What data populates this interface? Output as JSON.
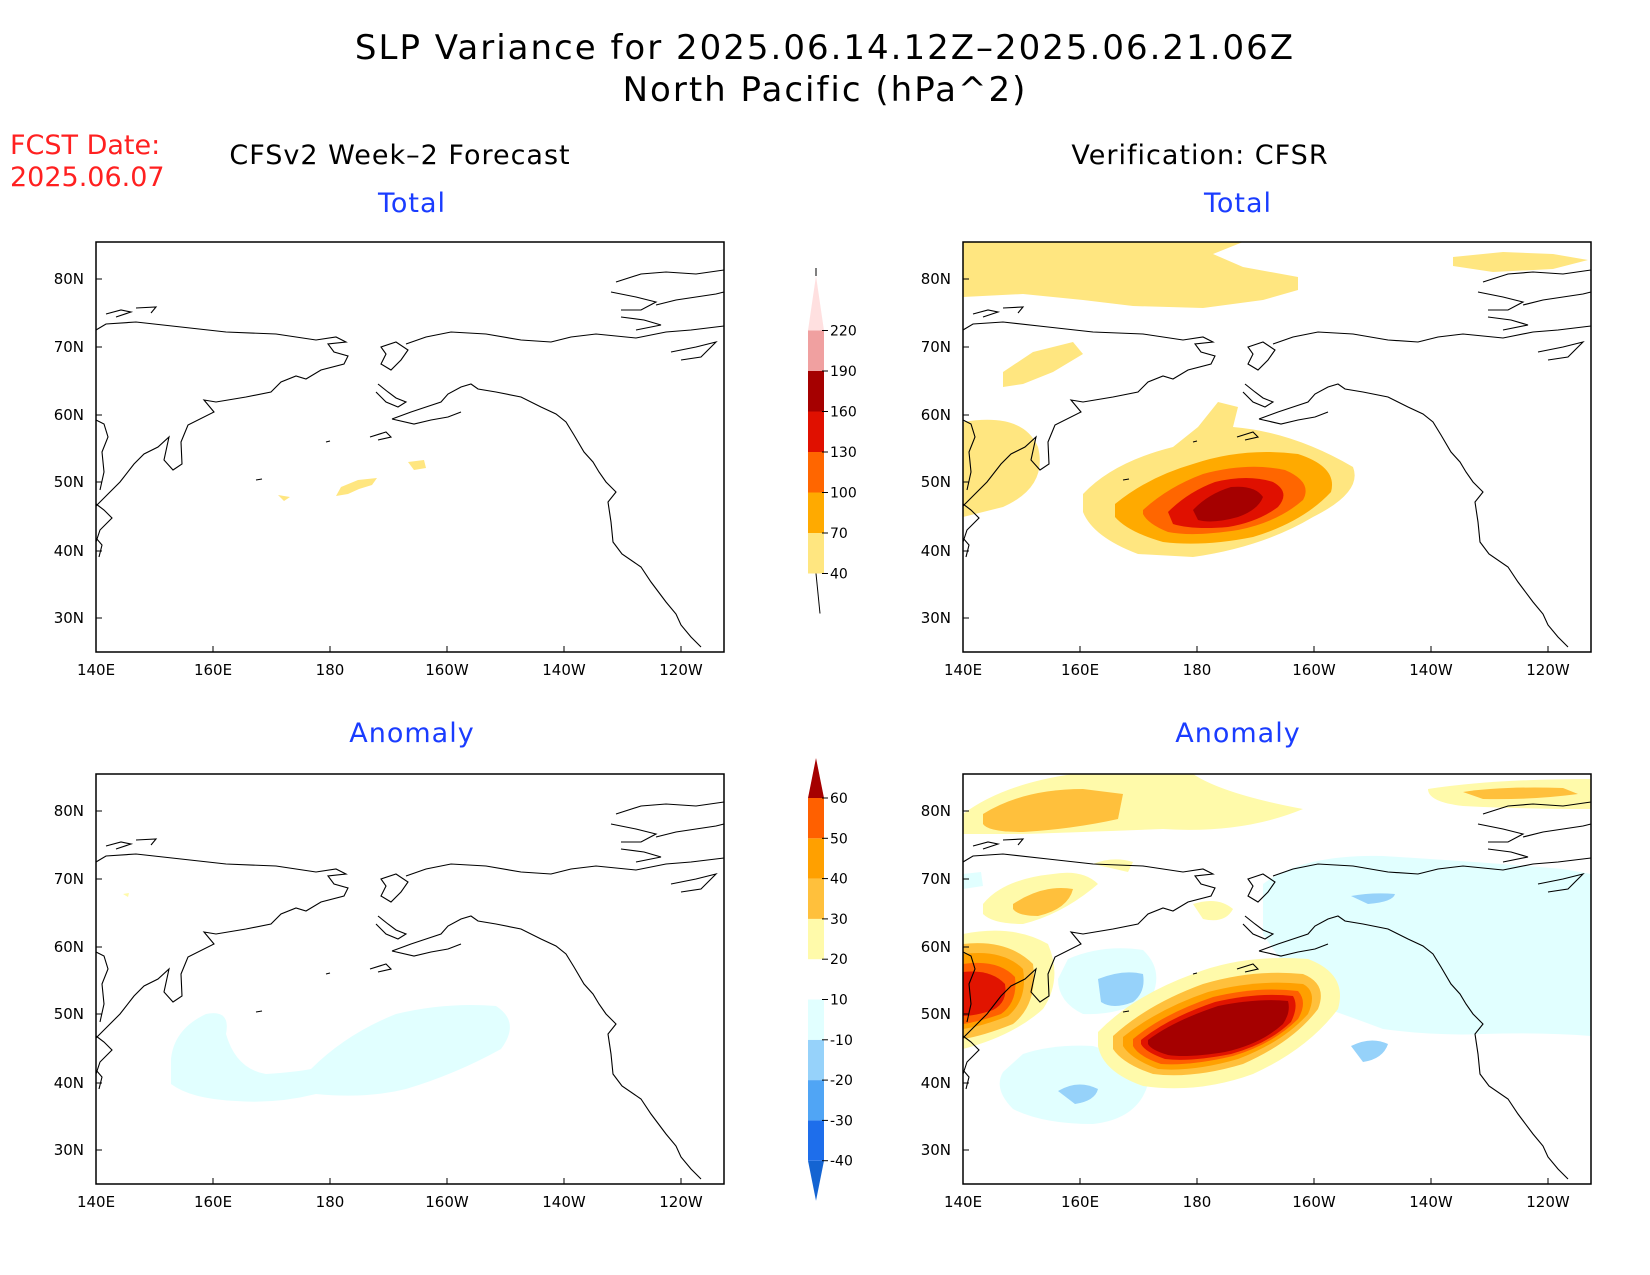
{
  "header": {
    "title_line1": "SLP Variance for 2025.06.14.12Z–2025.06.21.06Z",
    "title_line2": "North Pacific (hPa^2)"
  },
  "fcst": {
    "line1": "FCST Date:",
    "line2": "2025.06.07"
  },
  "columns": {
    "left": "CFSv2 Week–2 Forecast",
    "right": "Verification: CFSR"
  },
  "panels": {
    "top_left": "Total",
    "top_right": "Total",
    "bottom_left": "Anomaly",
    "bottom_right": "Anomaly"
  },
  "axes": {
    "lon_labels": [
      "140E",
      "160E",
      "180",
      "160W",
      "140W",
      "120W"
    ],
    "lat_labels": [
      "80N",
      "70N",
      "60N",
      "50N",
      "40N",
      "30N"
    ]
  },
  "colorbar_total": {
    "levels": [
      "40",
      "70",
      "100",
      "130",
      "160",
      "190",
      "220"
    ],
    "colors": [
      "#ffe680",
      "#ffaa00",
      "#ff6600",
      "#e01000",
      "#a50000",
      "#f0a0a0",
      "#ffe0e0"
    ]
  },
  "colorbar_anomaly": {
    "levels": [
      "-40",
      "-30",
      "-20",
      "-10",
      "10",
      "20",
      "30",
      "40",
      "50",
      "60"
    ],
    "colors": [
      "#1464d2",
      "#1e6eeb",
      "#50a5f5",
      "#96d2fa",
      "#e1ffff",
      "#ffffff",
      "#fffaaa",
      "#ffc03c",
      "#ffa000",
      "#ff6000",
      "#e11400",
      "#a50000"
    ]
  }
}
